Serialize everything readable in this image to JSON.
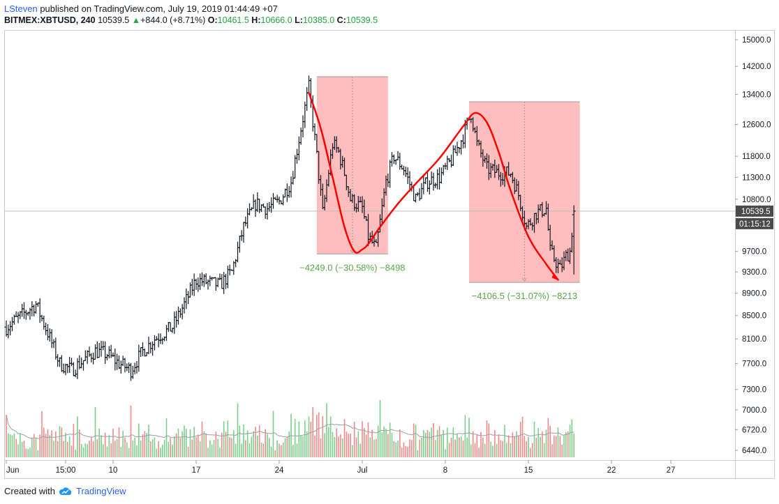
{
  "header": {
    "author": "LSteven",
    "published_text": "published on TradingView.com, July 19, 2019 01:44:49 +07",
    "symbol": "BITMEX:XBTUSD, 240",
    "last": "10539.5",
    "change_arrow": "▲",
    "change": "+844.0 (+8.71%)",
    "o_label": "O:",
    "o_value": "10461.5",
    "h_label": "H:",
    "h_value": "10666.0",
    "l_label": "L:",
    "l_value": "10385.0",
    "c_label": "C:",
    "c_value": "10539.5"
  },
  "footer": {
    "created_with": "Created with",
    "brand": "TradingView",
    "logo_icon": "tradingview-cloud-icon"
  },
  "colors": {
    "bar": "#131722",
    "volume_up": "#7ccf8a",
    "volume_down": "#f08a8a",
    "volume_ma": "#9e9e9e",
    "range_box": "#ffb3b3",
    "range_text": "#5aa847",
    "trend_line": "#ff0000",
    "price_tag_bg": "#4a4a4a"
  },
  "chart_data": {
    "type": "ohlc",
    "symbol": "BITMEX:XBTUSD",
    "interval": "240",
    "y_scale": "log",
    "y_ticks": [
      6440.0,
      6720.0,
      7000.0,
      7300.0,
      7700.0,
      8100.0,
      8500.0,
      8900.0,
      9300.0,
      9700.0,
      10800.0,
      11300.0,
      11800.0,
      12600.0,
      13400.0,
      14200.0,
      15000.0
    ],
    "x_ticks": [
      "Jun",
      "15:00",
      "10",
      "17",
      "24",
      "Jul",
      "8",
      "15",
      "22",
      "27"
    ],
    "last_price": "10539.5",
    "countdown": "01:15:12",
    "grid": false,
    "ranges": [
      {
        "label": "−4249.0 (−30.58%) −8498",
        "high": 13900,
        "low": 9650
      },
      {
        "label": "−4106.5 (−31.07%) −8213",
        "high": 13200,
        "low": 9100
      }
    ],
    "trend_path": [
      [
        "Jun 26 12:00",
        13450
      ],
      [
        "Jun 27 12:00",
        12500
      ],
      [
        "Jun 28 12:00",
        11300
      ],
      [
        "Jun 29 12:00",
        10200
      ],
      [
        "Jun 30 08:00",
        9700
      ],
      [
        "Jul 1 00:00",
        9740
      ],
      [
        "Jul 1 12:00",
        9850
      ],
      [
        "Jul 2 12:00",
        10200
      ],
      [
        "Jul 4 00:00",
        10700
      ],
      [
        "Jul 5 12:00",
        11150
      ],
      [
        "Jul 7 12:00",
        11750
      ],
      [
        "Jul 9 12:00",
        12550
      ],
      [
        "Jul 10 12:00",
        12900
      ],
      [
        "Jul 11 12:00",
        12650
      ],
      [
        "Jul 12 12:00",
        11900
      ],
      [
        "Jul 13 12:00",
        11000
      ],
      [
        "Jul 15 00:00",
        10000
      ],
      [
        "Jul 16 12:00",
        9450
      ],
      [
        "Jul 17 12:00",
        9150
      ]
    ],
    "anchors": [
      [
        "Jun 1 00:00",
        8300
      ],
      [
        "Jun 3 12:00",
        8700
      ],
      [
        "Jun 4 12:00",
        8200
      ],
      [
        "Jun 5 12:00",
        7700
      ],
      [
        "Jun 6 12:00",
        7600
      ],
      [
        "Jun 8 12:00",
        7900
      ],
      [
        "Jun 9 12:00",
        7850
      ],
      [
        "Jun 10 12:00",
        7700
      ],
      [
        "Jun 11 12:00",
        7600
      ],
      [
        "Jun 12 12:00",
        7900
      ],
      [
        "Jun 13 12:00",
        8100
      ],
      [
        "Jun 15 00:00",
        8300
      ],
      [
        "Jun 16 00:00",
        8700
      ],
      [
        "Jun 17 00:00",
        9150
      ],
      [
        "Jun 18 00:00",
        9100
      ],
      [
        "Jun 19 00:00",
        9050
      ],
      [
        "Jun 20 00:00",
        9300
      ],
      [
        "Jun 21 00:00",
        10200
      ],
      [
        "Jun 22 00:00",
        10700
      ],
      [
        "Jun 23 00:00",
        10600
      ],
      [
        "Jun 24 00:00",
        10750
      ],
      [
        "Jun 25 00:00",
        11200
      ],
      [
        "Jun 25 20:00",
        12500
      ],
      [
        "Jun 26 12:00",
        13600
      ],
      [
        "Jun 27 04:00",
        11800
      ],
      [
        "Jun 27 16:00",
        10500
      ],
      [
        "Jun 28 12:00",
        12100
      ],
      [
        "Jun 29 00:00",
        11900
      ],
      [
        "Jun 29 12:00",
        11400
      ],
      [
        "Jun 30 00:00",
        10800
      ],
      [
        "Jul 1 00:00",
        10600
      ],
      [
        "Jul 1 12:00",
        10000
      ],
      [
        "Jul 2 04:00",
        9750
      ],
      [
        "Jul 3 00:00",
        11200
      ],
      [
        "Jul 3 16:00",
        11800
      ],
      [
        "Jul 4 12:00",
        11500
      ],
      [
        "Jul 5 12:00",
        10800
      ],
      [
        "Jul 6 12:00",
        11200
      ],
      [
        "Jul 7 12:00",
        11300
      ],
      [
        "Jul 8 12:00",
        11700
      ],
      [
        "Jul 9 12:00",
        12300
      ],
      [
        "Jul 10 04:00",
        12900
      ],
      [
        "Jul 10 16:00",
        12100
      ],
      [
        "Jul 11 12:00",
        11500
      ],
      [
        "Jul 12 12:00",
        11400
      ],
      [
        "Jul 13 12:00",
        11400
      ],
      [
        "Jul 14 04:00",
        10900
      ],
      [
        "Jul 14 20:00",
        10200
      ],
      [
        "Jul 15 16:00",
        10500
      ],
      [
        "Jul 16 12:00",
        10600
      ],
      [
        "Jul 16 20:00",
        9700
      ],
      [
        "Jul 17 16:00",
        9350
      ],
      [
        "Jul 18 04:00",
        9600
      ],
      [
        "Jul 18 12:00",
        9700
      ],
      [
        "Jul 18 20:00",
        10540
      ]
    ]
  }
}
